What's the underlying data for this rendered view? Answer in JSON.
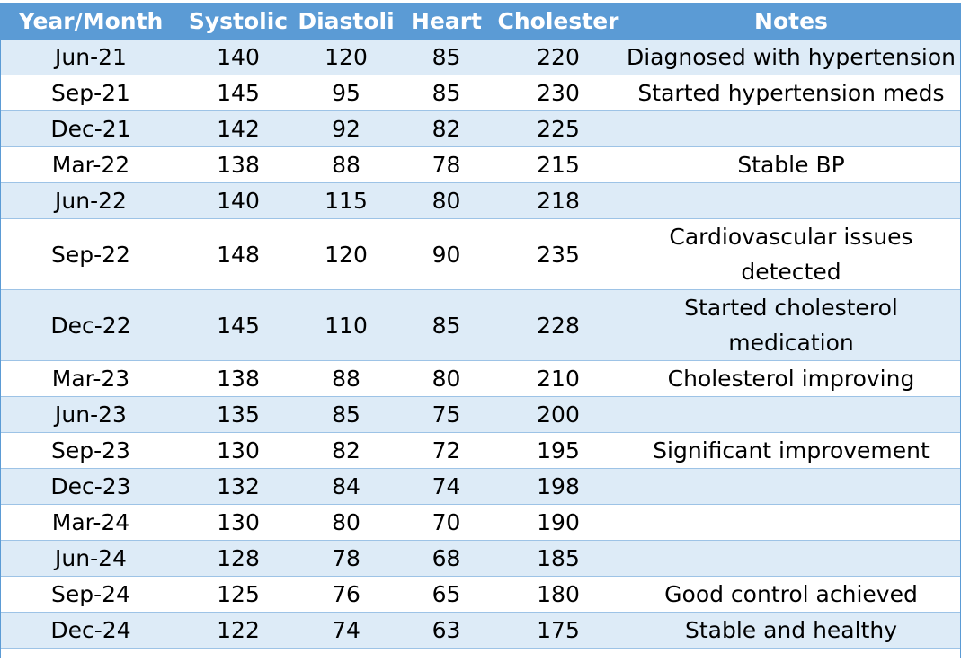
{
  "headers": [
    "Year/Month",
    "Systolic",
    "Diastoli",
    "Heart",
    "Cholester",
    "Notes"
  ],
  "rows": [
    {
      "month": "Jun-21",
      "systolic": "140",
      "diastolic": "120",
      "heart": "85",
      "cholesterol": "220",
      "notes": "Diagnosed with hypertension"
    },
    {
      "month": "Sep-21",
      "systolic": "145",
      "diastolic": "95",
      "heart": "85",
      "cholesterol": "230",
      "notes": "Started hypertension meds"
    },
    {
      "month": "Dec-21",
      "systolic": "142",
      "diastolic": "92",
      "heart": "82",
      "cholesterol": "225",
      "notes": ""
    },
    {
      "month": "Mar-22",
      "systolic": "138",
      "diastolic": "88",
      "heart": "78",
      "cholesterol": "215",
      "notes": "Stable BP"
    },
    {
      "month": "Jun-22",
      "systolic": "140",
      "diastolic": "115",
      "heart": "80",
      "cholesterol": "218",
      "notes": ""
    },
    {
      "month": "Sep-22",
      "systolic": "148",
      "diastolic": "120",
      "heart": "90",
      "cholesterol": "235",
      "notes": "Cardiovascular issues detected"
    },
    {
      "month": "Dec-22",
      "systolic": "145",
      "diastolic": "110",
      "heart": "85",
      "cholesterol": "228",
      "notes": "Started cholesterol medication"
    },
    {
      "month": "Mar-23",
      "systolic": "138",
      "diastolic": "88",
      "heart": "80",
      "cholesterol": "210",
      "notes": "Cholesterol improving"
    },
    {
      "month": "Jun-23",
      "systolic": "135",
      "diastolic": "85",
      "heart": "75",
      "cholesterol": "200",
      "notes": ""
    },
    {
      "month": "Sep-23",
      "systolic": "130",
      "diastolic": "82",
      "heart": "72",
      "cholesterol": "195",
      "notes": "Significant improvement"
    },
    {
      "month": "Dec-23",
      "systolic": "132",
      "diastolic": "84",
      "heart": "74",
      "cholesterol": "198",
      "notes": ""
    },
    {
      "month": "Mar-24",
      "systolic": "130",
      "diastolic": "80",
      "heart": "70",
      "cholesterol": "190",
      "notes": ""
    },
    {
      "month": "Jun-24",
      "systolic": "128",
      "diastolic": "78",
      "heart": "68",
      "cholesterol": "185",
      "notes": ""
    },
    {
      "month": "Sep-24",
      "systolic": "125",
      "diastolic": "76",
      "heart": "65",
      "cholesterol": "180",
      "notes": "Good control achieved"
    },
    {
      "month": "Dec-24",
      "systolic": "122",
      "diastolic": "74",
      "heart": "63",
      "cholesterol": "175",
      "notes": "Stable and healthy"
    }
  ],
  "colors": {
    "header_bg": "#5b9bd5",
    "header_text": "#ffffff",
    "band_row": "#ddebf7",
    "plain_row": "#ffffff",
    "row_border": "#9dc3e6"
  }
}
